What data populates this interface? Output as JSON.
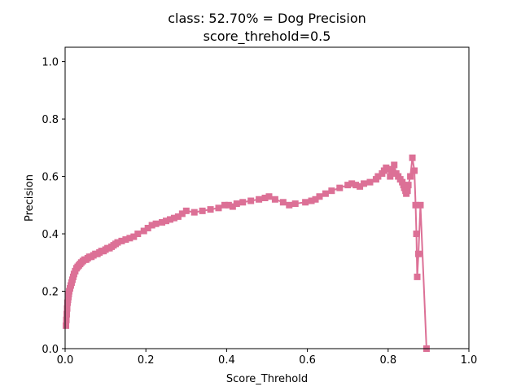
{
  "chart_data": {
    "type": "line",
    "title": "class: 52.70% = Dog Precision",
    "subtitle": "score_threhold=0.5",
    "xlabel": "Score_Threhold",
    "ylabel": "Precision",
    "xlim": [
      0.0,
      1.0
    ],
    "ylim": [
      0.0,
      1.05
    ],
    "xticks": [
      "0.0",
      "0.2",
      "0.4",
      "0.6",
      "0.8",
      "1.0"
    ],
    "yticks": [
      "0.0",
      "0.2",
      "0.4",
      "0.6",
      "0.8",
      "1.0"
    ],
    "grid": false,
    "legend": "none",
    "color": "#dc7096",
    "marker": "square",
    "series": [
      {
        "x": [
          0.002,
          0.003,
          0.004,
          0.005,
          0.006,
          0.007,
          0.008,
          0.009,
          0.01,
          0.012,
          0.014,
          0.016,
          0.018,
          0.02,
          0.022,
          0.025,
          0.028,
          0.031,
          0.034,
          0.037,
          0.04,
          0.044,
          0.048,
          0.052,
          0.056,
          0.06,
          0.065,
          0.07,
          0.075,
          0.08,
          0.085,
          0.09,
          0.095,
          0.1,
          0.105,
          0.11,
          0.115,
          0.12,
          0.125,
          0.13,
          0.14,
          0.15,
          0.16,
          0.17,
          0.18,
          0.195,
          0.205,
          0.215,
          0.225,
          0.24,
          0.25,
          0.26,
          0.27,
          0.28,
          0.29,
          0.3,
          0.32,
          0.34,
          0.36,
          0.38,
          0.395,
          0.405,
          0.415,
          0.425,
          0.44,
          0.46,
          0.48,
          0.495,
          0.505,
          0.52,
          0.54,
          0.555,
          0.57,
          0.595,
          0.61,
          0.62,
          0.63,
          0.645,
          0.66,
          0.68,
          0.7,
          0.71,
          0.72,
          0.73,
          0.74,
          0.755,
          0.77,
          0.775,
          0.785,
          0.79,
          0.795,
          0.8,
          0.805,
          0.81,
          0.815,
          0.82,
          0.825,
          0.83,
          0.835,
          0.838,
          0.84,
          0.843,
          0.845,
          0.848,
          0.85,
          0.855,
          0.86,
          0.865,
          0.868,
          0.87,
          0.872,
          0.875,
          0.88,
          0.895
        ],
        "values": [
          0.08,
          0.1,
          0.12,
          0.14,
          0.16,
          0.17,
          0.18,
          0.19,
          0.2,
          0.21,
          0.22,
          0.23,
          0.24,
          0.25,
          0.26,
          0.27,
          0.28,
          0.285,
          0.29,
          0.295,
          0.3,
          0.305,
          0.31,
          0.31,
          0.315,
          0.32,
          0.32,
          0.325,
          0.33,
          0.33,
          0.335,
          0.34,
          0.34,
          0.345,
          0.35,
          0.35,
          0.355,
          0.36,
          0.365,
          0.37,
          0.375,
          0.38,
          0.385,
          0.39,
          0.4,
          0.41,
          0.42,
          0.43,
          0.435,
          0.44,
          0.445,
          0.45,
          0.455,
          0.46,
          0.47,
          0.48,
          0.475,
          0.48,
          0.485,
          0.49,
          0.5,
          0.5,
          0.495,
          0.505,
          0.51,
          0.515,
          0.52,
          0.525,
          0.53,
          0.52,
          0.51,
          0.5,
          0.505,
          0.51,
          0.515,
          0.52,
          0.53,
          0.54,
          0.55,
          0.56,
          0.57,
          0.575,
          0.57,
          0.565,
          0.575,
          0.58,
          0.59,
          0.6,
          0.61,
          0.62,
          0.63,
          0.625,
          0.6,
          0.62,
          0.64,
          0.61,
          0.6,
          0.59,
          0.58,
          0.57,
          0.56,
          0.55,
          0.54,
          0.55,
          0.57,
          0.6,
          0.665,
          0.62,
          0.5,
          0.4,
          0.25,
          0.33,
          0.5,
          0.0
        ]
      }
    ]
  }
}
